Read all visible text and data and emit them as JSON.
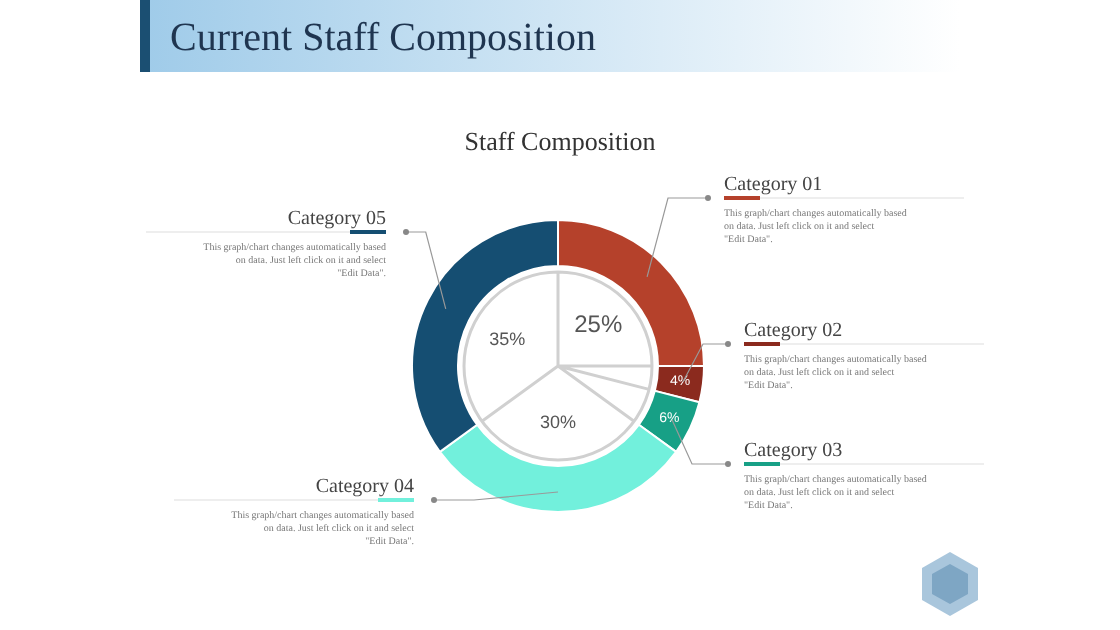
{
  "chart_data": {
    "type": "donut",
    "title": "Current Staff Composition",
    "subtitle": "Staff Composition",
    "categories": [
      "Category 01",
      "Category 02",
      "Category 03",
      "Category 04",
      "Category 05"
    ],
    "values": [
      25,
      4,
      6,
      30,
      35
    ],
    "colors": [
      "#b5412b",
      "#8b2a1e",
      "#17a086",
      "#72f0dc",
      "#154e72"
    ],
    "value_labels": [
      "25%",
      "4%",
      "6%",
      "30%",
      "35%"
    ],
    "annotations": [
      "This graph/chart changes automatically based on data. Just left click on it and select \"Edit Data\".",
      "This graph/chart changes automatically based on data. Just left click on it and select \"Edit Data\".",
      "This graph/chart changes automatically based on data. Just left click on it and select \"Edit Data\".",
      "This graph/chart changes automatically based on data. Just left click on it and select \"Edit Data\".",
      "This graph/chart changes automatically based on data. Just left click on it and select \"Edit Data\"."
    ]
  }
}
